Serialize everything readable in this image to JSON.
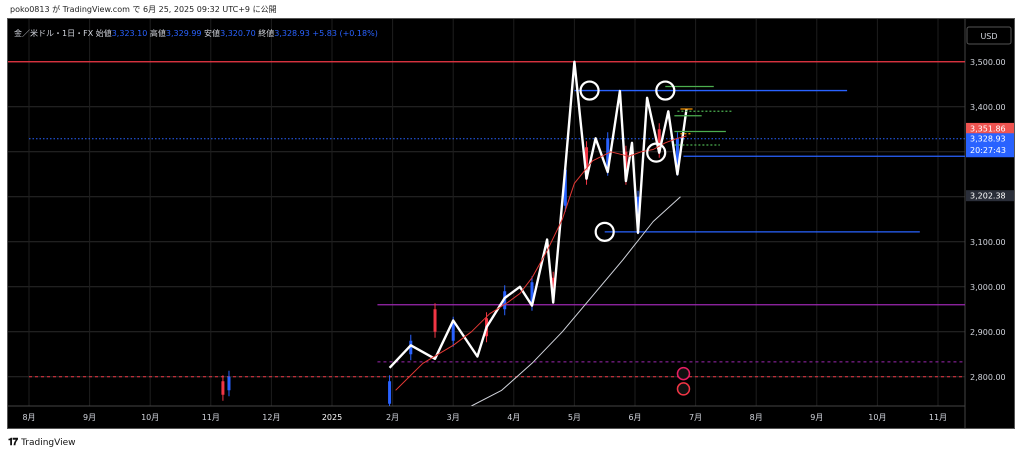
{
  "header_text": "poko0813 が TradingView.com で 6月 25, 2025 09:32 UTC+9 に公開",
  "footer": {
    "brand": "TradingView",
    "logo_icon": "tradingview-logo-icon"
  },
  "chart_data": {
    "type": "line",
    "legend": {
      "symbol": "金／米ドル・1日・FX",
      "open_label": "始値",
      "open": "3,323.10",
      "high_label": "高値",
      "high": "3,329.99",
      "low_label": "安値",
      "low": "3,320.70",
      "close_label": "終値",
      "close": "3,328.93",
      "change": "+5.83 (+0.18%)"
    },
    "currency": "USD",
    "y_ticks": [
      "3,500.00",
      "3,400.00",
      "3,300.00",
      "3,200.00",
      "3,100.00",
      "3,000.00",
      "2,900.00",
      "2,800.00"
    ],
    "y_tick_values": [
      3500,
      3400,
      3300,
      3200,
      3100,
      3000,
      2900,
      2800
    ],
    "ylim": [
      2735,
      3595
    ],
    "x_ticks": [
      "8月",
      "9月",
      "10月",
      "11月",
      "12月",
      "2025",
      "2月",
      "3月",
      "4月",
      "5月",
      "6月",
      "7月",
      "8月",
      "9月",
      "10月",
      "11月"
    ],
    "x_tick_months": [
      0,
      1,
      2,
      3,
      4,
      5,
      6,
      7,
      8,
      9,
      10,
      11,
      12,
      13,
      14,
      15
    ],
    "price_labels": [
      {
        "text": "3,351.86",
        "value": 3351.86,
        "bg": "#ef5350"
      },
      {
        "text": "3,328.93",
        "value": 3328.93,
        "bg": "#2962ff",
        "countdown": "20:27:43"
      },
      {
        "text": "3,202.38",
        "value": 3202.38,
        "bg": "#2a2e39"
      }
    ],
    "horizontal_lines": [
      {
        "value": 3500,
        "color": "#f23645",
        "style": "solid",
        "x_start": 0
      },
      {
        "value": 3436,
        "color": "#2962ff",
        "style": "solid",
        "x_start": 9.0,
        "x_end": 13.5
      },
      {
        "value": 3290,
        "color": "#2962ff",
        "style": "solid",
        "x_start": 10.8,
        "x_end": 16
      },
      {
        "value": 3122,
        "color": "#2962ff",
        "style": "solid",
        "x_start": 9.5,
        "x_end": 14.7
      },
      {
        "value": 2960,
        "color": "#9c27b0",
        "style": "solid",
        "x_start": 5.75,
        "x_end": 16
      },
      {
        "value": 2833,
        "color": "#9c27b0",
        "style": "dashed",
        "x_start": 5.75,
        "x_end": 16
      },
      {
        "value": 2800,
        "color": "#f23645",
        "style": "dashed",
        "x_start": 0
      },
      {
        "value": 3328.93,
        "color": "#2962ff",
        "style": "dotted",
        "x_start": 0
      }
    ],
    "series": [
      {
        "name": "zigzag",
        "color": "#ffffff",
        "x": [
          5.95,
          6.3,
          6.7,
          7.0,
          7.4,
          7.55,
          7.85,
          8.1,
          8.3,
          8.55,
          8.65,
          8.85,
          9.0,
          9.2,
          9.35,
          9.55,
          9.75,
          9.85,
          9.95,
          10.05,
          10.2,
          10.4,
          10.55,
          10.7,
          10.85
        ],
        "y": [
          2820,
          2870,
          2840,
          2925,
          2845,
          2910,
          2975,
          3000,
          2958,
          3105,
          2965,
          3265,
          3500,
          3240,
          3330,
          3255,
          3435,
          3235,
          3320,
          3120,
          3420,
          3298,
          3390,
          3250,
          3395
        ]
      },
      {
        "name": "ma-short",
        "color": "#e53935",
        "x": [
          6.05,
          6.5,
          7.0,
          7.3,
          7.6,
          7.9,
          8.1,
          8.3,
          8.55,
          8.8,
          9.0,
          9.3,
          9.6,
          9.9,
          10.1,
          10.3,
          10.5,
          10.7,
          10.85
        ],
        "y": [
          2770,
          2830,
          2870,
          2900,
          2940,
          2965,
          2985,
          3020,
          3080,
          3150,
          3230,
          3280,
          3300,
          3290,
          3300,
          3305,
          3320,
          3330,
          3335
        ]
      },
      {
        "name": "ma-long",
        "color": "#d1d4dc",
        "x": [
          7.3,
          7.8,
          8.3,
          8.8,
          9.3,
          9.8,
          10.3,
          10.75
        ],
        "y": [
          2735,
          2770,
          2830,
          2900,
          2980,
          3060,
          3145,
          3200
        ]
      }
    ],
    "candles": [
      {
        "x": 5.95,
        "open": 2740,
        "close": 2790,
        "dir": "up"
      },
      {
        "x": 6.3,
        "open": 2850,
        "close": 2880,
        "dir": "up"
      },
      {
        "x": 6.7,
        "open": 2900,
        "close": 2950,
        "dir": "down"
      },
      {
        "x": 7.0,
        "open": 2880,
        "close": 2920,
        "dir": "up"
      },
      {
        "x": 7.55,
        "open": 2890,
        "close": 2930,
        "dir": "down"
      },
      {
        "x": 7.85,
        "open": 2950,
        "close": 2990,
        "dir": "up"
      },
      {
        "x": 8.3,
        "open": 2960,
        "close": 3010,
        "dir": "up"
      },
      {
        "x": 8.65,
        "open": 2980,
        "close": 3020,
        "dir": "down"
      },
      {
        "x": 8.85,
        "open": 3180,
        "close": 3260,
        "dir": "up"
      },
      {
        "x": 9.2,
        "open": 3240,
        "close": 3310,
        "dir": "down"
      },
      {
        "x": 9.55,
        "open": 3260,
        "close": 3330,
        "dir": "up"
      },
      {
        "x": 9.85,
        "open": 3240,
        "close": 3300,
        "dir": "down"
      },
      {
        "x": 10.05,
        "open": 3130,
        "close": 3200,
        "dir": "up"
      },
      {
        "x": 10.4,
        "open": 3300,
        "close": 3350,
        "dir": "down"
      },
      {
        "x": 10.7,
        "open": 3260,
        "close": 3330,
        "dir": "up"
      },
      {
        "x": 3.2,
        "open": 2760,
        "close": 2790,
        "dir": "down"
      },
      {
        "x": 3.3,
        "open": 2770,
        "close": 2800,
        "dir": "up"
      }
    ],
    "circles": [
      {
        "x": 9.25,
        "y": 3436
      },
      {
        "x": 10.5,
        "y": 3436
      },
      {
        "x": 10.35,
        "y": 3298
      },
      {
        "x": 9.5,
        "y": 3122
      }
    ],
    "short_lines": [
      {
        "value": 3445,
        "color": "#4caf50",
        "x_start": 10.5,
        "x_end": 11.3,
        "style": "solid"
      },
      {
        "value": 3390,
        "color": "#4caf50",
        "x_start": 10.7,
        "x_end": 11.6,
        "style": "dotted"
      },
      {
        "value": 3380,
        "color": "#4caf50",
        "x_start": 10.65,
        "x_end": 11.1,
        "style": "solid"
      },
      {
        "value": 3345,
        "color": "#4caf50",
        "x_start": 10.65,
        "x_end": 11.5,
        "style": "solid"
      },
      {
        "value": 3315,
        "color": "#4caf50",
        "x_start": 10.65,
        "x_end": 11.4,
        "style": "dotted"
      },
      {
        "value": 3395,
        "color": "#ff9800",
        "x_start": 10.75,
        "x_end": 10.95,
        "style": "solid"
      },
      {
        "value": 3340,
        "color": "#ff9800",
        "x_start": 10.75,
        "x_end": 10.95,
        "style": "dotted"
      }
    ],
    "event_icons": [
      {
        "x": 10.8,
        "value": 2807,
        "name": "lightning-event-icon",
        "color": "#e91e63"
      },
      {
        "x": 10.8,
        "value": 2773,
        "name": "us-flag-event-icon",
        "color": "#f23645"
      }
    ]
  }
}
